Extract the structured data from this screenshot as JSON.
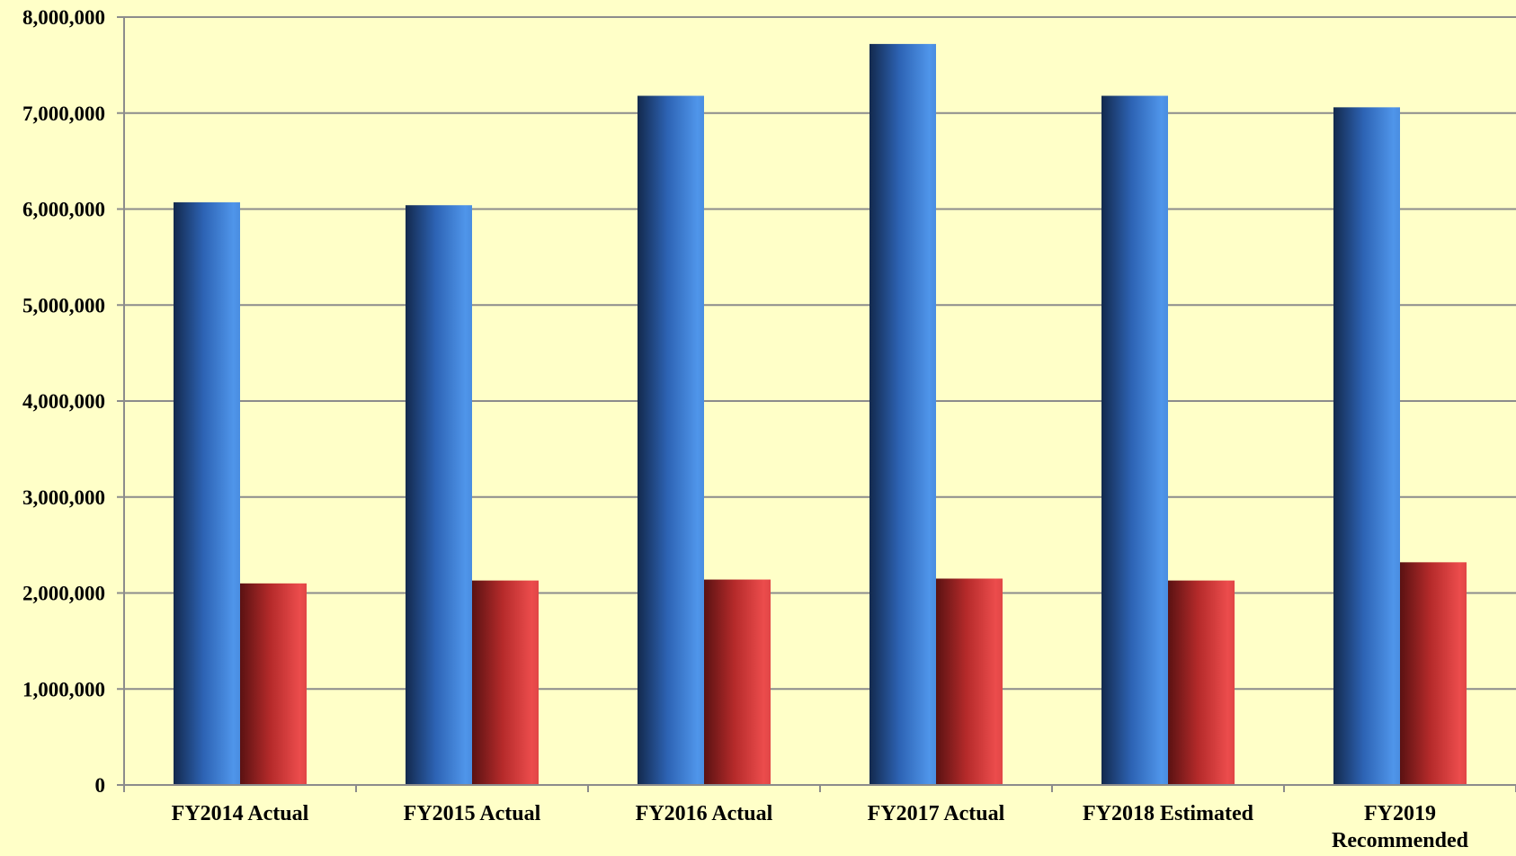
{
  "colors": {
    "background": "#ffffc8",
    "grid": "#8c8c8c",
    "series_1": "#3f80d6",
    "series_2": "#d63c3c"
  },
  "chart_data": {
    "type": "bar",
    "title": "",
    "xlabel": "",
    "ylabel": "",
    "categories": [
      "FY2014 Actual",
      "FY2015 Actual",
      "FY2016 Actual",
      "FY2017 Actual",
      "FY2018 Estimated",
      "FY2019 Recommended"
    ],
    "category_label_lines": [
      [
        "FY2014 Actual"
      ],
      [
        "FY2015 Actual"
      ],
      [
        "FY2016 Actual"
      ],
      [
        "FY2017 Actual"
      ],
      [
        "FY2018 Estimated"
      ],
      [
        "FY2019",
        "Recommended"
      ]
    ],
    "series": [
      {
        "values": [
          6070000,
          6040000,
          7180000,
          7720000,
          7180000,
          7060000
        ]
      },
      {
        "values": [
          2100000,
          2130000,
          2140000,
          2150000,
          2130000,
          2320000
        ]
      }
    ],
    "ylim": [
      0,
      8000000
    ],
    "yticks": [
      0,
      1000000,
      2000000,
      3000000,
      4000000,
      5000000,
      6000000,
      7000000,
      8000000
    ],
    "ytick_labels": [
      "0",
      "1,000,000",
      "2,000,000",
      "3,000,000",
      "4,000,000",
      "5,000,000",
      "6,000,000",
      "7,000,000",
      "8,000,000"
    ],
    "grid": true,
    "legend": "none"
  }
}
